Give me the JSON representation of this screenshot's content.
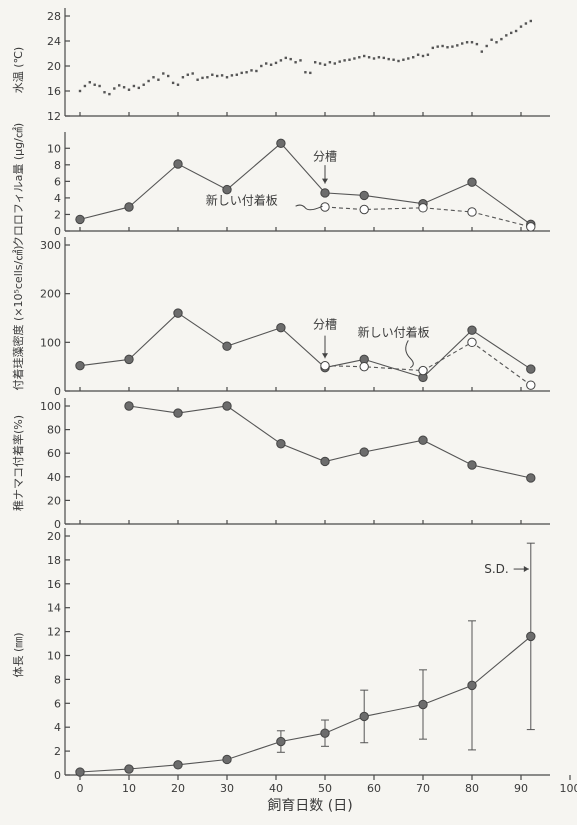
{
  "chart_data": [
    {
      "type": "scatter",
      "ylabel": "水温 (℃)",
      "ylim": [
        12,
        28
      ],
      "yticks": [
        12,
        16,
        20,
        24,
        28
      ],
      "xlim": [
        0,
        100
      ],
      "series": [
        {
          "style": "dots",
          "x": [
            0,
            1,
            2,
            3,
            4,
            5,
            6,
            7,
            8,
            9,
            10,
            11,
            12,
            13,
            14,
            15,
            16,
            17,
            18,
            19,
            20,
            21,
            22,
            23,
            24,
            25,
            26,
            27,
            28,
            29,
            30,
            31,
            32,
            33,
            34,
            35,
            36,
            37,
            38,
            39,
            40,
            41,
            42,
            43,
            44,
            45,
            46,
            47,
            48,
            49,
            50,
            51,
            52,
            53,
            54,
            55,
            56,
            57,
            58,
            59,
            60,
            61,
            62,
            63,
            64,
            65,
            66,
            67,
            68,
            69,
            70,
            71,
            72,
            73,
            74,
            75,
            76,
            77,
            78,
            79,
            80,
            81,
            82,
            83,
            84,
            85,
            86,
            87,
            88,
            89,
            90,
            91,
            92
          ],
          "y": [
            16,
            16.8,
            17.4,
            17,
            16.8,
            15.8,
            15.5,
            16.4,
            16.9,
            16.6,
            16.2,
            16.8,
            16.5,
            17,
            17.6,
            18.2,
            17.8,
            18.8,
            18.4,
            17.3,
            17,
            18.2,
            18.6,
            18.8,
            17.8,
            18.1,
            18.2,
            18.6,
            18.4,
            18.5,
            18.2,
            18.5,
            18.6,
            18.9,
            19,
            19.3,
            19.2,
            20,
            20.4,
            20.2,
            20.5,
            20.9,
            21.3,
            21.1,
            20.6,
            20.9,
            19,
            18.9,
            20.6,
            20.4,
            20.2,
            20.6,
            20.4,
            20.7,
            20.9,
            21,
            21.2,
            21.4,
            21.6,
            21.4,
            21.2,
            21.4,
            21.3,
            21.1,
            21,
            20.8,
            21,
            21.2,
            21.4,
            21.8,
            21.6,
            21.8,
            22.9,
            23.1,
            23.2,
            23,
            23.1,
            23.3,
            23.6,
            23.8,
            23.8,
            23.5,
            22.3,
            23.2,
            24.2,
            23.8,
            24.3,
            24.9,
            25.3,
            25.6,
            26.3,
            26.8,
            27.2
          ]
        }
      ]
    },
    {
      "type": "line",
      "ylabel": "クロロフィルa量 (μg/㎠)",
      "ylim": [
        0,
        11
      ],
      "yticks": [
        0,
        2,
        4,
        6,
        8,
        10
      ],
      "xlim": [
        0,
        100
      ],
      "series": [
        {
          "style": "solid-filled",
          "x": [
            0,
            10,
            20,
            30,
            41,
            50,
            58,
            70,
            80,
            92
          ],
          "y": [
            1.4,
            2.9,
            8.1,
            5.0,
            10.6,
            4.6,
            4.3,
            3.3,
            5.9,
            0.8
          ]
        },
        {
          "style": "dashed-open",
          "x": [
            50,
            58,
            70,
            80,
            92
          ],
          "y": [
            2.9,
            2.6,
            2.8,
            2.3,
            0.5
          ]
        }
      ],
      "annotations": [
        {
          "text": "分槽",
          "x": 50,
          "y": 8.5
        },
        {
          "text": "新しい付着板",
          "x": 33,
          "y": 3.2
        }
      ]
    },
    {
      "type": "line",
      "ylabel": "付着珪藻密度 (×10⁵cells/㎠)",
      "ylim": [
        0,
        300
      ],
      "yticks": [
        0,
        100,
        200,
        300
      ],
      "xlim": [
        0,
        100
      ],
      "series": [
        {
          "style": "solid-filled",
          "x": [
            0,
            10,
            20,
            30,
            41,
            50,
            58,
            70,
            80,
            92
          ],
          "y": [
            52,
            65,
            160,
            92,
            130,
            48,
            65,
            28,
            125,
            45
          ]
        },
        {
          "style": "dashed-open",
          "x": [
            50,
            58,
            70,
            80,
            92
          ],
          "y": [
            52,
            50,
            42,
            100,
            12
          ]
        }
      ],
      "annotations": [
        {
          "text": "分槽",
          "x": 50,
          "y": 128
        },
        {
          "text": "新しい付着板",
          "x": 64,
          "y": 112
        }
      ]
    },
    {
      "type": "line",
      "ylabel": "稚ナマコ付着率(%)",
      "ylim": [
        0,
        100
      ],
      "yticks": [
        0,
        20,
        40,
        60,
        80,
        100
      ],
      "xlim": [
        0,
        100
      ],
      "series": [
        {
          "style": "solid-filled",
          "x": [
            10,
            20,
            30,
            41,
            50,
            58,
            70,
            80,
            92
          ],
          "y": [
            100,
            94,
            100,
            68,
            53,
            61,
            71,
            50,
            39
          ]
        }
      ]
    },
    {
      "type": "line",
      "ylabel": "体長 (㎜)",
      "xlabel": "飼育日数 (日)",
      "ylim": [
        0,
        20
      ],
      "yticks": [
        0,
        2,
        4,
        6,
        8,
        10,
        12,
        14,
        16,
        18,
        20
      ],
      "xlim": [
        0,
        100
      ],
      "xticks": [
        0,
        10,
        20,
        30,
        40,
        50,
        60,
        70,
        80,
        90,
        100
      ],
      "series": [
        {
          "style": "solid-filled",
          "x": [
            0,
            10,
            20,
            30,
            41,
            50,
            58,
            70,
            80,
            92
          ],
          "y": [
            0.25,
            0.5,
            0.85,
            1.3,
            2.8,
            3.5,
            4.9,
            5.9,
            7.5,
            11.6
          ],
          "err": [
            0,
            0,
            0,
            0,
            0.9,
            1.1,
            2.2,
            2.9,
            5.4,
            7.8
          ]
        }
      ],
      "annotations": [
        {
          "text": "S.D.",
          "x": 85,
          "y": 16.9
        }
      ]
    }
  ]
}
